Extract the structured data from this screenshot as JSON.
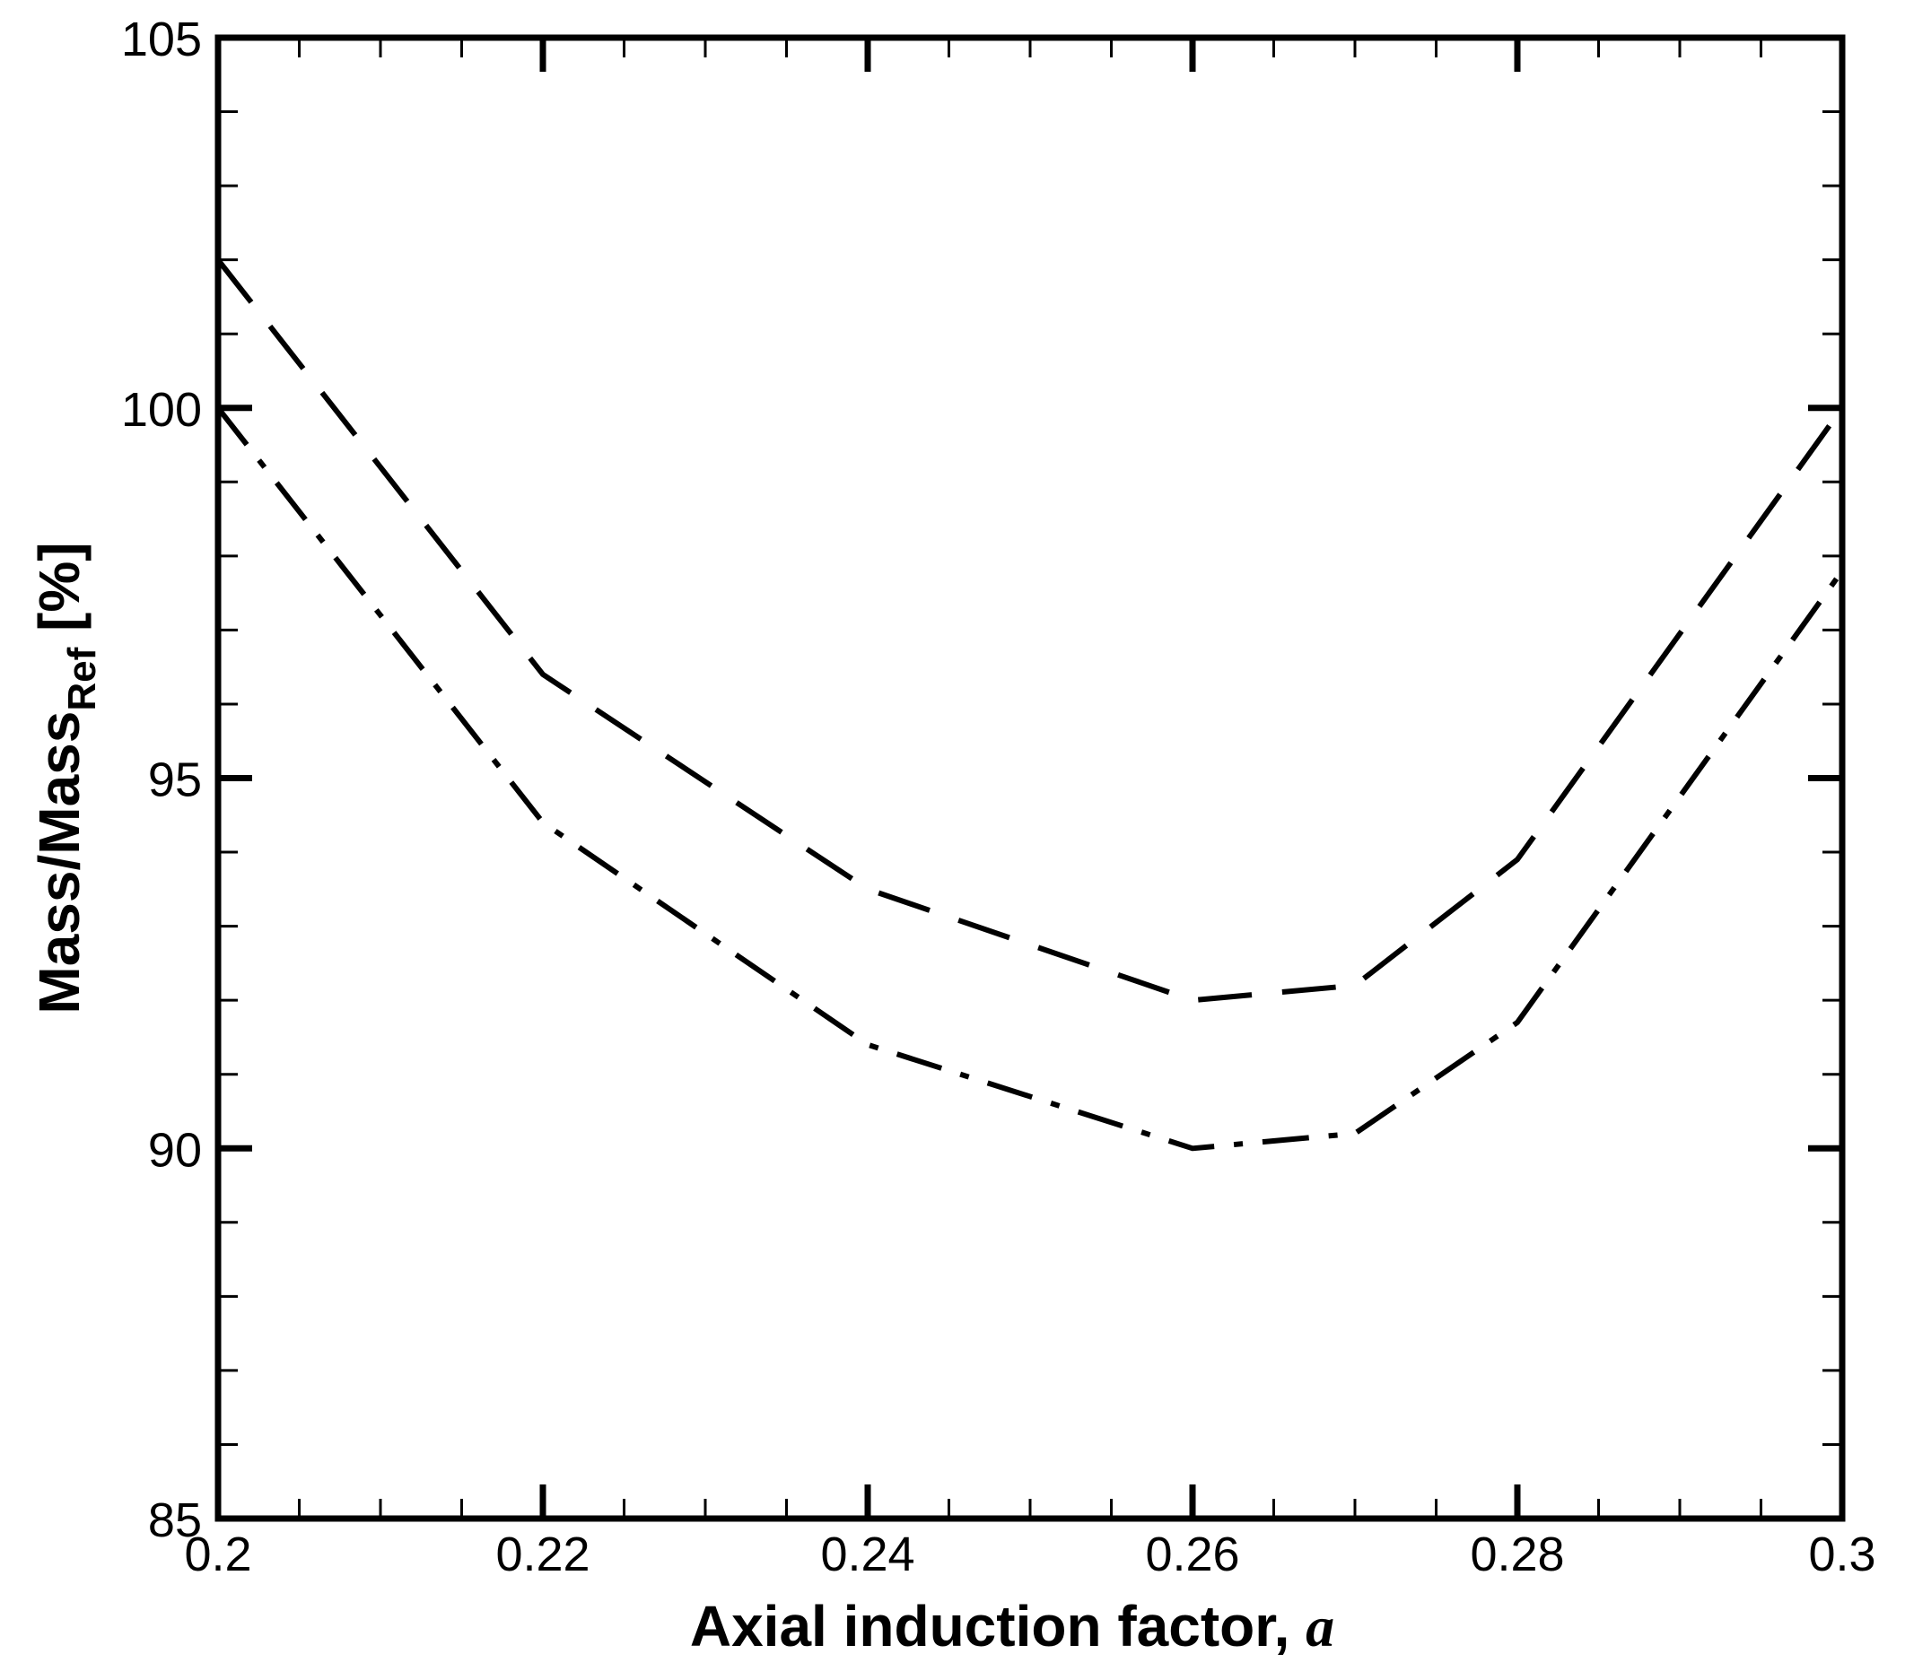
{
  "chart_data": {
    "type": "line",
    "xlabel": "Axial induction factor,",
    "xlabel_var": "a",
    "ylabel_main": "Mass/Mass",
    "ylabel_sub": "Ref",
    "ylabel_unit": " [%]",
    "xlim": [
      0.2,
      0.3
    ],
    "ylim": [
      85,
      105
    ],
    "x_ticks": [
      "0.2",
      "0.22",
      "0.24",
      "0.26",
      "0.28",
      "0.3"
    ],
    "y_ticks": [
      "85",
      "90",
      "95",
      "100",
      "105"
    ],
    "grid": false,
    "legend": "none",
    "series": [
      {
        "style": "dashed",
        "color": "#000000",
        "x": [
          0.2,
          0.22,
          0.24,
          0.26,
          0.27,
          0.28,
          0.3
        ],
        "y": [
          102.0,
          96.4,
          93.5,
          92.0,
          92.2,
          93.9,
          100.0
        ]
      },
      {
        "style": "dash-dot",
        "color": "#000000",
        "x": [
          0.2,
          0.22,
          0.24,
          0.26,
          0.27,
          0.28,
          0.3
        ],
        "y": [
          100.0,
          94.4,
          91.4,
          90.0,
          90.2,
          91.7,
          97.8
        ]
      }
    ]
  }
}
